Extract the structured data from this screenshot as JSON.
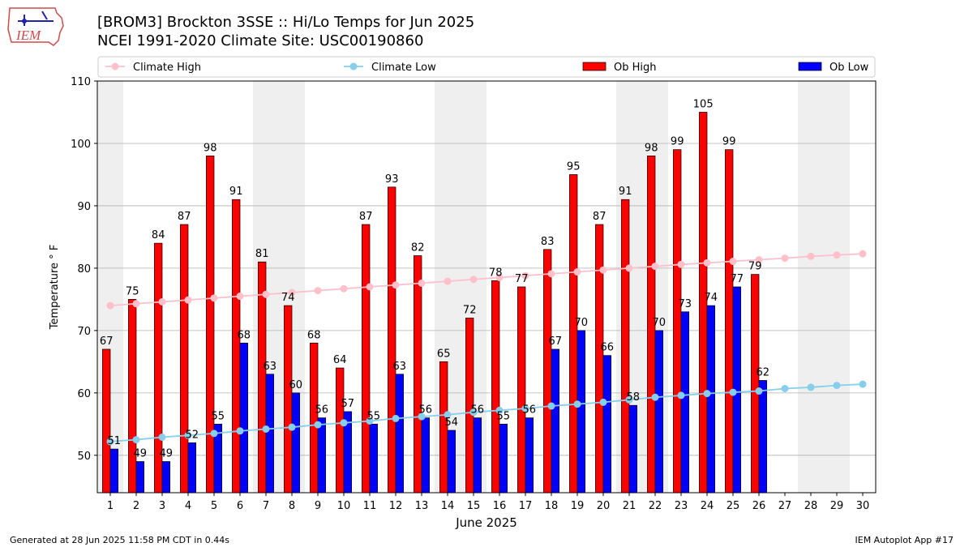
{
  "header": {
    "title_line1": "[BROM3] Brockton 3SSE :: Hi/Lo Temps for Jun 2025",
    "title_line2": "NCEI 1991-2020 Climate Site: USC00190860",
    "logo_text": "IEM"
  },
  "footer": {
    "generated": "Generated at 28 Jun 2025 11:58 PM CDT in 0.44s",
    "app": "IEM Autoplot App #17"
  },
  "colors": {
    "ob_high": "#ff0000",
    "ob_low": "#0000ff",
    "climate_high": "#ffc0cb",
    "climate_low": "#87ceeb",
    "weekend_band": "#efefef",
    "grid": "#b0b0b0"
  },
  "chart_data": {
    "type": "bar",
    "xlabel": "June 2025",
    "ylabel": "Temperature ° F",
    "ylim": [
      44,
      110
    ],
    "yticks": [
      50,
      60,
      70,
      80,
      90,
      100,
      110
    ],
    "grid": "horizontal",
    "legend_position": "top",
    "categories": [
      "1",
      "2",
      "3",
      "4",
      "5",
      "6",
      "7",
      "8",
      "9",
      "10",
      "11",
      "12",
      "13",
      "14",
      "15",
      "16",
      "17",
      "18",
      "19",
      "20",
      "21",
      "22",
      "23",
      "24",
      "25",
      "26",
      "27",
      "28",
      "29",
      "30"
    ],
    "weekend_bands": [
      [
        1,
        1
      ],
      [
        7,
        8
      ],
      [
        14,
        15
      ],
      [
        21,
        22
      ],
      [
        28,
        29
      ]
    ],
    "series": [
      {
        "name": "Climate High",
        "kind": "line",
        "values": [
          74.0,
          74.3,
          74.6,
          74.9,
          75.2,
          75.5,
          75.8,
          76.1,
          76.4,
          76.7,
          77.0,
          77.3,
          77.6,
          77.9,
          78.2,
          78.5,
          78.8,
          79.1,
          79.4,
          79.7,
          80.0,
          80.3,
          80.6,
          80.85,
          81.1,
          81.35,
          81.6,
          81.9,
          82.1,
          82.3
        ]
      },
      {
        "name": "Climate Low",
        "kind": "line",
        "values": [
          52.2,
          52.5,
          52.9,
          53.2,
          53.5,
          53.9,
          54.2,
          54.5,
          54.9,
          55.2,
          55.5,
          55.9,
          56.2,
          56.5,
          56.9,
          57.2,
          57.5,
          57.9,
          58.2,
          58.5,
          58.9,
          59.3,
          59.6,
          59.9,
          60.1,
          60.3,
          60.7,
          60.9,
          61.2,
          61.4
        ]
      },
      {
        "name": "Ob High",
        "kind": "bar",
        "values": [
          67,
          75,
          84,
          87,
          98,
          91,
          81,
          74,
          68,
          64,
          87,
          93,
          82,
          65,
          72,
          78,
          77,
          83,
          95,
          87,
          91,
          98,
          99,
          105,
          99,
          79,
          null,
          null,
          null,
          null
        ]
      },
      {
        "name": "Ob Low",
        "kind": "bar",
        "values": [
          51,
          49,
          49,
          52,
          55,
          68,
          63,
          60,
          56,
          57,
          55,
          63,
          56,
          54,
          56,
          55,
          56,
          67,
          70,
          66,
          58,
          70,
          73,
          74,
          77,
          62,
          null,
          null,
          null,
          null
        ]
      }
    ]
  }
}
